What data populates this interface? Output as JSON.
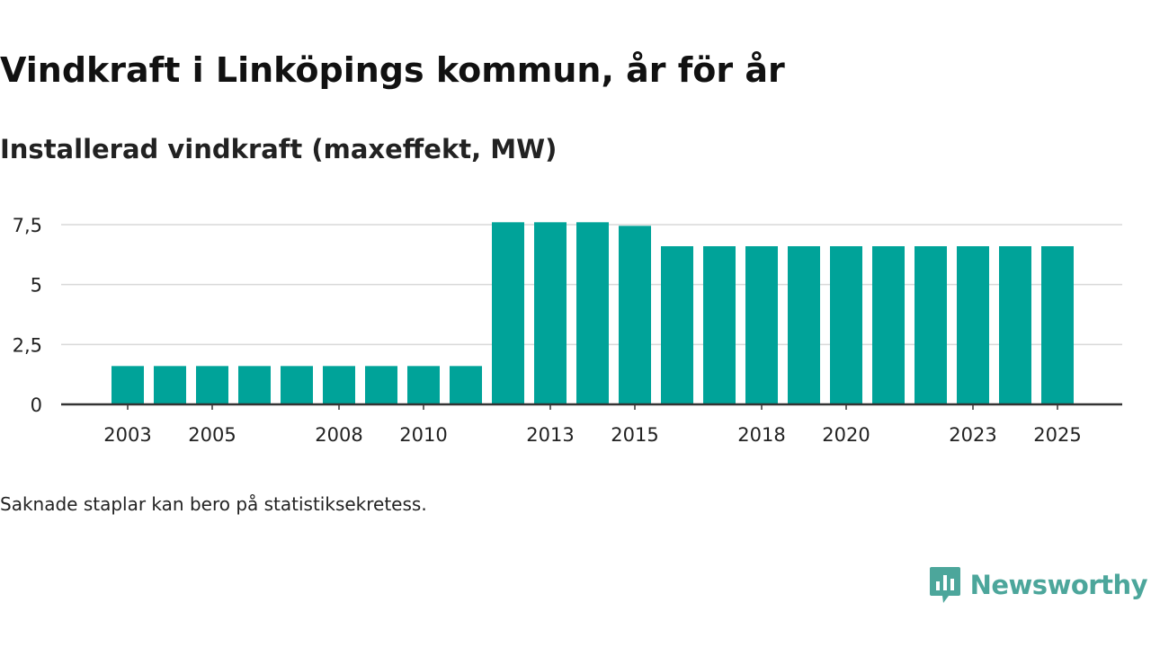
{
  "header": {
    "title": "Vindkraft i Linköpings kommun, år för år",
    "subtitle": "Installerad vindkraft (maxeffekt, MW)"
  },
  "footnote": "Saknade staplar kan bero på statistiksekretess.",
  "brand": {
    "name": "Newsworthy",
    "logo_icon": "chart-speech-bubble-icon",
    "color": "#4ca69b"
  },
  "colors": {
    "bar": "#00a399",
    "grid": "#d9d9d9",
    "axis": "#333333",
    "text": "#222222"
  },
  "chart_data": {
    "type": "bar",
    "title": "Vindkraft i Linköpings kommun, år för år",
    "ylabel": "Installerad vindkraft (maxeffekt, MW)",
    "xlabel": "",
    "categories": [
      "2003",
      "2004",
      "2005",
      "2006",
      "2007",
      "2008",
      "2009",
      "2010",
      "2011",
      "2012",
      "2013",
      "2014",
      "2015",
      "2016",
      "2017",
      "2018",
      "2019",
      "2020",
      "2021",
      "2022",
      "2023",
      "2024",
      "2025"
    ],
    "values": [
      1.6,
      1.6,
      1.6,
      1.6,
      1.6,
      1.6,
      1.6,
      1.6,
      1.6,
      7.6,
      7.6,
      7.6,
      7.45,
      6.6,
      6.6,
      6.6,
      6.6,
      6.6,
      6.6,
      6.6,
      6.6,
      6.6,
      6.6
    ],
    "ylim": [
      0,
      7.5
    ],
    "yticks": [
      0,
      2.5,
      5,
      7.5
    ],
    "ytick_labels": [
      "0",
      "2,5",
      "5",
      "7,5"
    ],
    "xtick_labels": [
      "2003",
      "2005",
      "2008",
      "2010",
      "2013",
      "2015",
      "2018",
      "2020",
      "2023",
      "2025"
    ],
    "grid": true,
    "legend": "none"
  }
}
